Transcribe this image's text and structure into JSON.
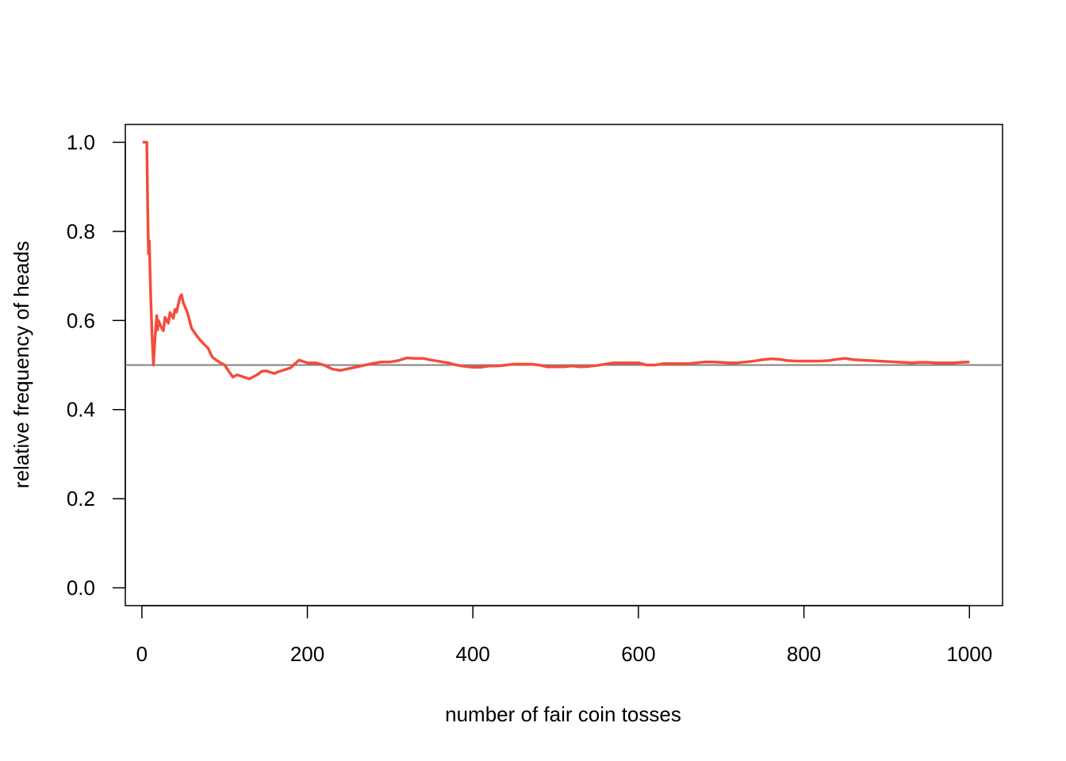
{
  "chart_data": {
    "type": "line",
    "title": "",
    "xlabel": "number of fair coin tosses",
    "ylabel": "relative frequency of heads",
    "xlim": [
      -20,
      1040
    ],
    "ylim": [
      -0.04,
      1.04
    ],
    "xticks": [
      0,
      200,
      400,
      600,
      800,
      1000
    ],
    "xtick_labels": [
      "0",
      "200",
      "400",
      "600",
      "800",
      "1000"
    ],
    "yticks": [
      0.0,
      0.2,
      0.4,
      0.6,
      0.8,
      1.0
    ],
    "ytick_labels": [
      "0.0",
      "0.2",
      "0.4",
      "0.6",
      "0.8",
      "1.0"
    ],
    "grid": false,
    "legend": "none",
    "reference_line": {
      "y": 0.5,
      "color": "#808080"
    },
    "series": [
      {
        "color": "#f24e3b",
        "points": [
          [
            1,
            1.0
          ],
          [
            2,
            1.0
          ],
          [
            3,
            1.0
          ],
          [
            4,
            1.0
          ],
          [
            5,
            1.0
          ],
          [
            6,
            1.0
          ],
          [
            7,
            0.857
          ],
          [
            8,
            0.75
          ],
          [
            9,
            0.778
          ],
          [
            10,
            0.7
          ],
          [
            11,
            0.636
          ],
          [
            12,
            0.583
          ],
          [
            13,
            0.538
          ],
          [
            14,
            0.5
          ],
          [
            15,
            0.533
          ],
          [
            16,
            0.5625
          ],
          [
            17,
            0.588
          ],
          [
            18,
            0.611
          ],
          [
            19,
            0.579
          ],
          [
            20,
            0.6
          ],
          [
            22,
            0.591
          ],
          [
            24,
            0.583
          ],
          [
            26,
            0.577
          ],
          [
            28,
            0.607
          ],
          [
            30,
            0.6
          ],
          [
            32,
            0.594
          ],
          [
            34,
            0.618
          ],
          [
            36,
            0.611
          ],
          [
            38,
            0.605
          ],
          [
            40,
            0.625
          ],
          [
            42,
            0.619
          ],
          [
            44,
            0.636
          ],
          [
            46,
            0.652
          ],
          [
            48,
            0.658
          ],
          [
            50,
            0.64
          ],
          [
            55,
            0.618
          ],
          [
            60,
            0.583
          ],
          [
            65,
            0.569
          ],
          [
            70,
            0.557
          ],
          [
            75,
            0.547
          ],
          [
            80,
            0.538
          ],
          [
            85,
            0.518
          ],
          [
            90,
            0.511
          ],
          [
            95,
            0.505
          ],
          [
            100,
            0.5
          ],
          [
            105,
            0.486
          ],
          [
            110,
            0.473
          ],
          [
            115,
            0.478
          ],
          [
            120,
            0.475
          ],
          [
            125,
            0.472
          ],
          [
            130,
            0.469
          ],
          [
            135,
            0.474
          ],
          [
            140,
            0.479
          ],
          [
            145,
            0.486
          ],
          [
            150,
            0.487
          ],
          [
            155,
            0.484
          ],
          [
            160,
            0.481
          ],
          [
            165,
            0.485
          ],
          [
            170,
            0.488
          ],
          [
            175,
            0.491
          ],
          [
            180,
            0.494
          ],
          [
            185,
            0.503
          ],
          [
            190,
            0.511
          ],
          [
            195,
            0.508
          ],
          [
            200,
            0.505
          ],
          [
            210,
            0.505
          ],
          [
            220,
            0.5
          ],
          [
            230,
            0.491
          ],
          [
            240,
            0.488
          ],
          [
            250,
            0.492
          ],
          [
            260,
            0.496
          ],
          [
            270,
            0.5
          ],
          [
            280,
            0.504
          ],
          [
            290,
            0.507
          ],
          [
            300,
            0.507
          ],
          [
            310,
            0.51
          ],
          [
            320,
            0.516
          ],
          [
            330,
            0.515
          ],
          [
            340,
            0.515
          ],
          [
            350,
            0.511
          ],
          [
            360,
            0.508
          ],
          [
            370,
            0.505
          ],
          [
            380,
            0.5
          ],
          [
            390,
            0.497
          ],
          [
            400,
            0.495
          ],
          [
            410,
            0.495
          ],
          [
            420,
            0.498
          ],
          [
            430,
            0.498
          ],
          [
            440,
            0.5
          ],
          [
            450,
            0.502
          ],
          [
            460,
            0.502
          ],
          [
            470,
            0.502
          ],
          [
            480,
            0.5
          ],
          [
            490,
            0.496
          ],
          [
            500,
            0.496
          ],
          [
            510,
            0.496
          ],
          [
            520,
            0.498
          ],
          [
            530,
            0.496
          ],
          [
            540,
            0.497
          ],
          [
            550,
            0.499
          ],
          [
            560,
            0.502
          ],
          [
            570,
            0.505
          ],
          [
            580,
            0.505
          ],
          [
            590,
            0.505
          ],
          [
            600,
            0.505
          ],
          [
            610,
            0.5
          ],
          [
            620,
            0.5
          ],
          [
            630,
            0.503
          ],
          [
            640,
            0.503
          ],
          [
            650,
            0.503
          ],
          [
            660,
            0.503
          ],
          [
            670,
            0.505
          ],
          [
            680,
            0.507
          ],
          [
            690,
            0.507
          ],
          [
            700,
            0.506
          ],
          [
            710,
            0.505
          ],
          [
            720,
            0.505
          ],
          [
            730,
            0.507
          ],
          [
            740,
            0.509
          ],
          [
            750,
            0.512
          ],
          [
            760,
            0.514
          ],
          [
            770,
            0.513
          ],
          [
            780,
            0.51
          ],
          [
            790,
            0.509
          ],
          [
            800,
            0.509
          ],
          [
            810,
            0.509
          ],
          [
            820,
            0.509
          ],
          [
            830,
            0.51
          ],
          [
            840,
            0.513
          ],
          [
            850,
            0.515
          ],
          [
            860,
            0.512
          ],
          [
            870,
            0.511
          ],
          [
            880,
            0.51
          ],
          [
            890,
            0.509
          ],
          [
            900,
            0.508
          ],
          [
            910,
            0.507
          ],
          [
            920,
            0.506
          ],
          [
            930,
            0.505
          ],
          [
            940,
            0.506
          ],
          [
            950,
            0.506
          ],
          [
            960,
            0.505
          ],
          [
            970,
            0.505
          ],
          [
            980,
            0.505
          ],
          [
            990,
            0.506
          ],
          [
            1000,
            0.507
          ]
        ]
      }
    ]
  }
}
